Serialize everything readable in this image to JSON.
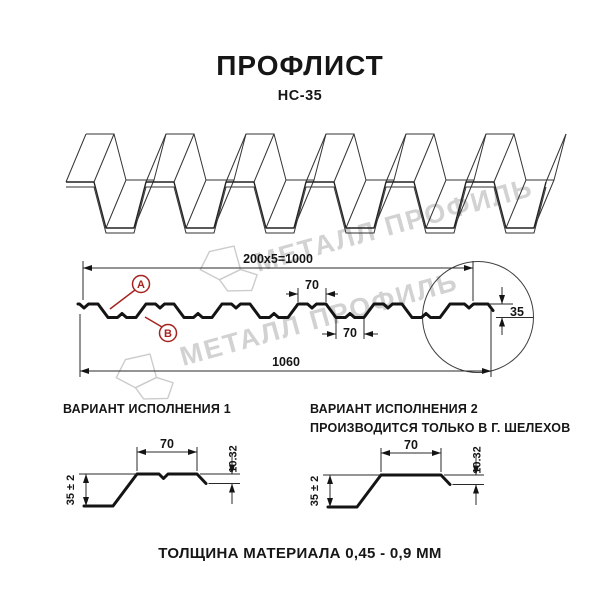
{
  "title": "ПРОФЛИСТ",
  "subtitle": "НС-35",
  "watermark": {
    "text": "МЕТАЛЛ ПРОФИЛЬ"
  },
  "section": {
    "dim_width_formula": "200x5=1000",
    "dim_crest_width": "70",
    "dim_valley_width": "70",
    "dim_overall_width": "1060",
    "dim_height": "35",
    "label_a": "А",
    "label_b": "В"
  },
  "variants": [
    {
      "title": "ВАРИАНТ ИСПОЛНЕНИЯ 1",
      "dim_top_width": "70",
      "dim_lip": "10.32",
      "dim_height": "35 ± 2"
    },
    {
      "title": "ВАРИАНТ ИСПОЛНЕНИЯ 2",
      "subtitle": "ПРОИЗВОДИТСЯ ТОЛЬКО В Г. ШЕЛЕХОВ",
      "dim_top_width": "70",
      "dim_lip": "10.32",
      "dim_height": "35 ± 2"
    }
  ],
  "footer": "ТОЛЩИНА МАТЕРИАЛА 0,45 - 0,9 ММ"
}
